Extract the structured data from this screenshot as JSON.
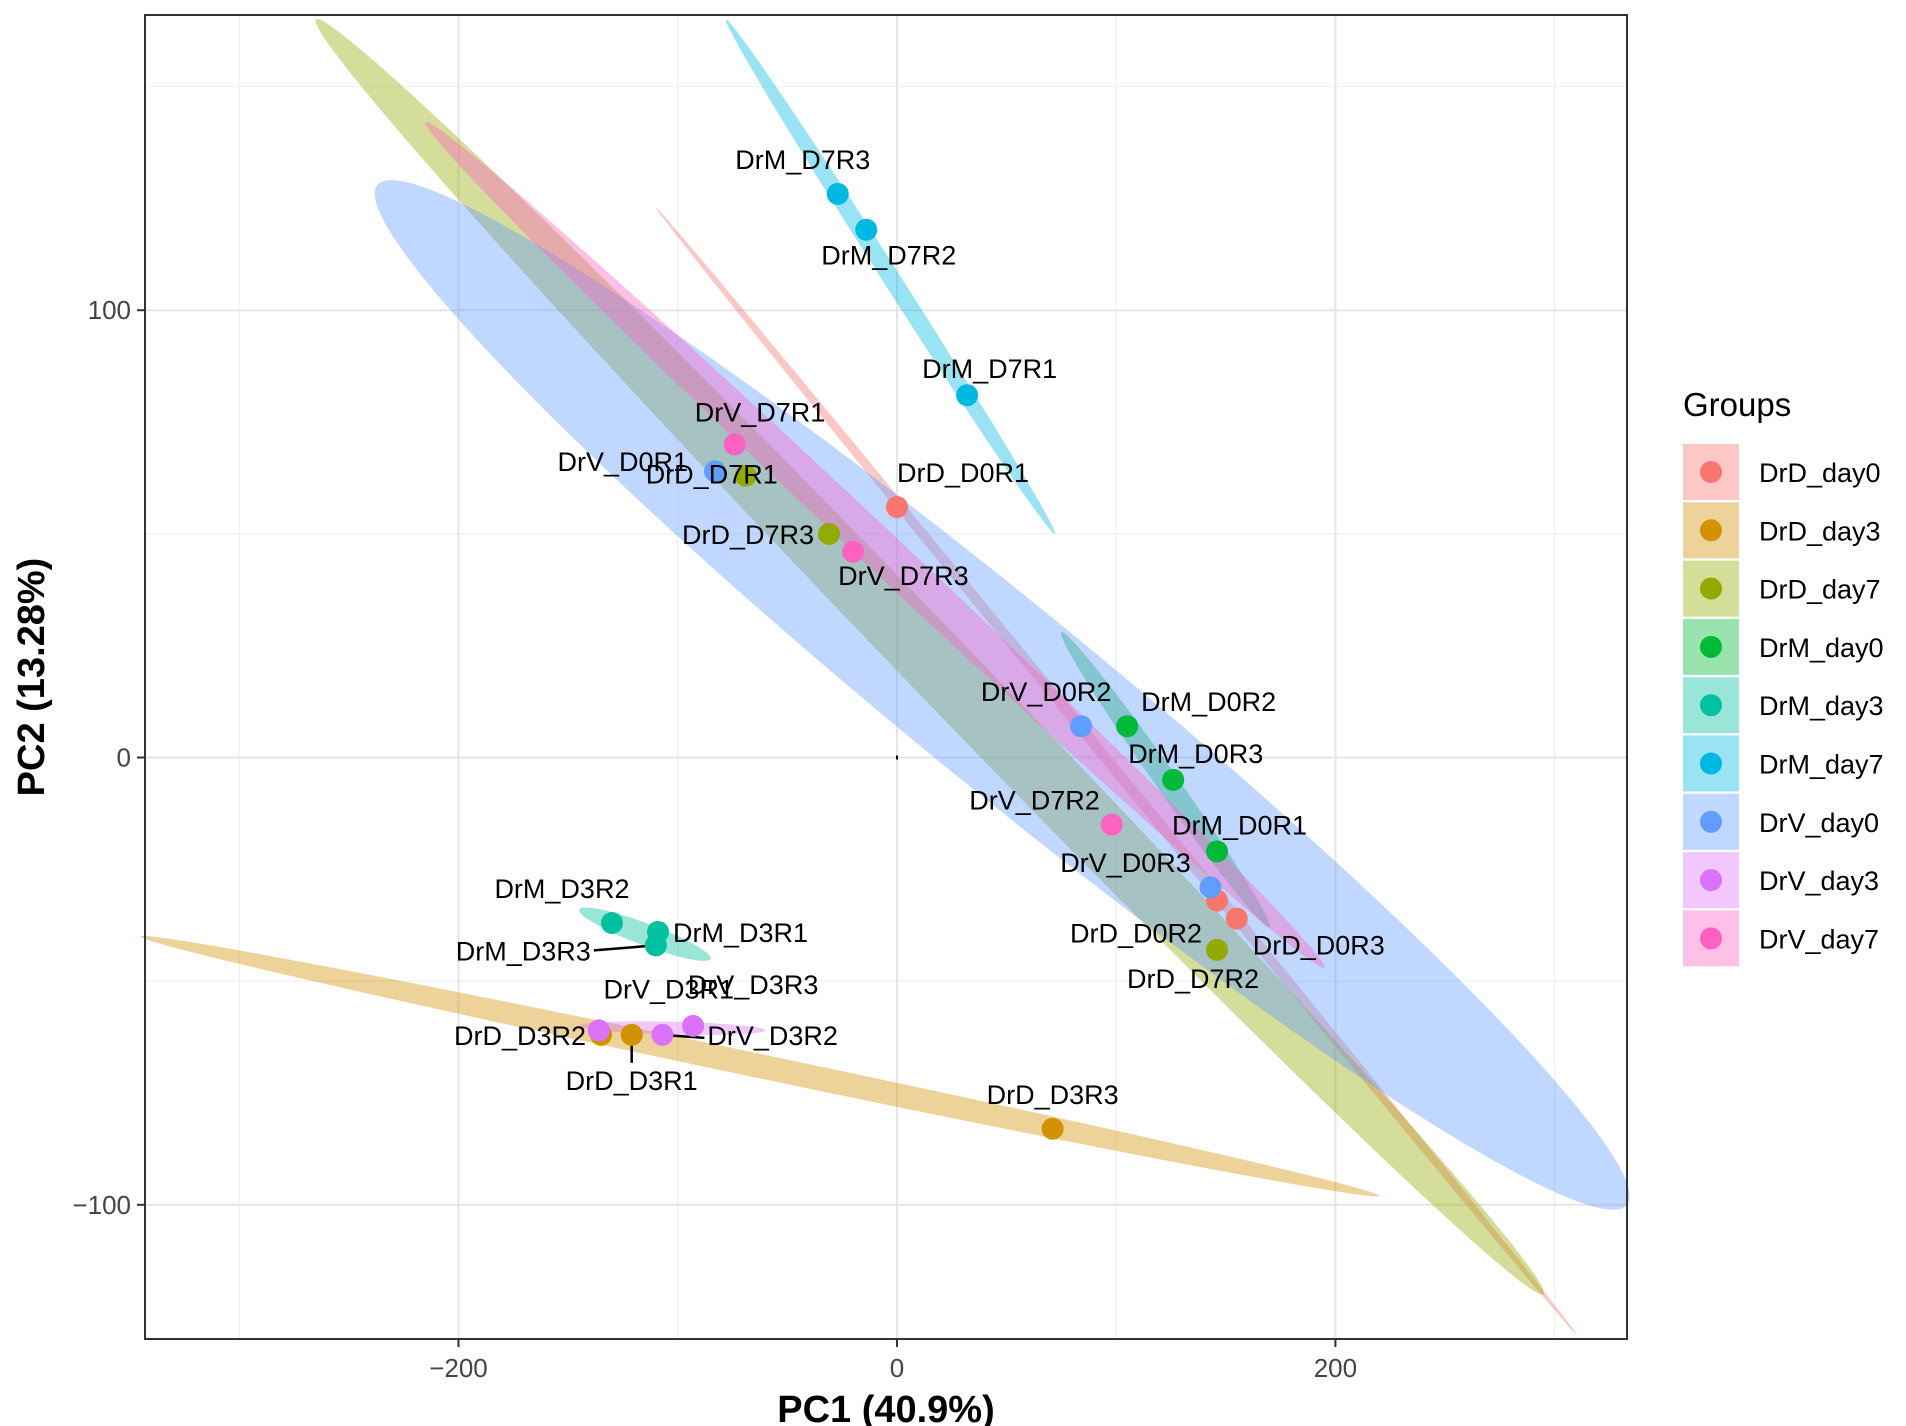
{
  "chart_data": {
    "type": "scatter",
    "xlabel": "PC1 (40.9%)",
    "ylabel": "PC2 (13.28%)",
    "xlim": [
      -343,
      333
    ],
    "ylim": [
      -130,
      166
    ],
    "x_ticks": [
      -200,
      0,
      200
    ],
    "y_ticks": [
      100,
      0,
      -100
    ],
    "x_tick_labels": [
      "−200",
      "0",
      "200"
    ],
    "y_tick_labels": [
      "100",
      "0",
      "−100"
    ],
    "grid": true,
    "legend_title": "Groups",
    "legend_position": "right",
    "groups": [
      {
        "name": "DrD_day0",
        "color": "#F8766D"
      },
      {
        "name": "DrD_day3",
        "color": "#D39200"
      },
      {
        "name": "DrD_day7",
        "color": "#93AA00"
      },
      {
        "name": "DrM_day0",
        "color": "#00BA38"
      },
      {
        "name": "DrM_day3",
        "color": "#00C19F"
      },
      {
        "name": "DrM_day7",
        "color": "#00B9E3"
      },
      {
        "name": "DrV_day0",
        "color": "#619CFF"
      },
      {
        "name": "DrV_day3",
        "color": "#DB72FB"
      },
      {
        "name": "DrV_day7",
        "color": "#FF61C3"
      }
    ],
    "points": [
      {
        "label": "DrD_D0R1",
        "group": "DrD_day0",
        "x": 0,
        "y": 56
      },
      {
        "label": "DrD_D0R2",
        "group": "DrD_day0",
        "x": 146,
        "y": -32
      },
      {
        "label": "DrD_D0R3",
        "group": "DrD_day0",
        "x": 155,
        "y": -36
      },
      {
        "label": "DrD_D3R1",
        "group": "DrD_day3",
        "x": -121,
        "y": -62
      },
      {
        "label": "DrD_D3R2",
        "group": "DrD_day3",
        "x": -135,
        "y": -62
      },
      {
        "label": "DrD_D3R3",
        "group": "DrD_day3",
        "x": 71,
        "y": -83
      },
      {
        "label": "DrD_D7R1",
        "group": "DrD_day7",
        "x": -69,
        "y": 63
      },
      {
        "label": "DrD_D7R2",
        "group": "DrD_day7",
        "x": 146,
        "y": -43
      },
      {
        "label": "DrD_D7R3",
        "group": "DrD_day7",
        "x": -31,
        "y": 50
      },
      {
        "label": "DrM_D0R1",
        "group": "DrM_day0",
        "x": 146,
        "y": -21
      },
      {
        "label": "DrM_D0R2",
        "group": "DrM_day0",
        "x": 105,
        "y": 7
      },
      {
        "label": "DrM_D0R3",
        "group": "DrM_day0",
        "x": 126,
        "y": -5
      },
      {
        "label": "DrM_D3R1",
        "group": "DrM_day3",
        "x": -109,
        "y": -39
      },
      {
        "label": "DrM_D3R2",
        "group": "DrM_day3",
        "x": -130,
        "y": -37
      },
      {
        "label": "DrM_D3R3",
        "group": "DrM_day3",
        "x": -110,
        "y": -42
      },
      {
        "label": "DrM_D7R1",
        "group": "DrM_day7",
        "x": 32,
        "y": 81
      },
      {
        "label": "DrM_D7R2",
        "group": "DrM_day7",
        "x": -14,
        "y": 118
      },
      {
        "label": "DrM_D7R3",
        "group": "DrM_day7",
        "x": -27,
        "y": 126
      },
      {
        "label": "DrV_D0R1",
        "group": "DrV_day0",
        "x": -83,
        "y": 64
      },
      {
        "label": "DrV_D0R2",
        "group": "DrV_day0",
        "x": 84,
        "y": 7
      },
      {
        "label": "DrV_D0R3",
        "group": "DrV_day0",
        "x": 143,
        "y": -29
      },
      {
        "label": "DrV_D3R1",
        "group": "DrV_day3",
        "x": -136,
        "y": -61
      },
      {
        "label": "DrV_D3R2",
        "group": "DrV_day3",
        "x": -107,
        "y": -62
      },
      {
        "label": "DrV_D3R3",
        "group": "DrV_day3",
        "x": -93,
        "y": -60
      },
      {
        "label": "DrV_D7R1",
        "group": "DrV_day7",
        "x": -74,
        "y": 70
      },
      {
        "label": "DrV_D7R2",
        "group": "DrV_day7",
        "x": 98,
        "y": -15
      },
      {
        "label": "DrV_D7R3",
        "group": "DrV_day7",
        "x": -20,
        "y": 46
      }
    ],
    "ellipses": [
      {
        "group": "DrD_day0",
        "x1": -110,
        "y1": 123,
        "x2": 310,
        "y2": -129,
        "width": 1.5
      },
      {
        "group": "DrD_day3",
        "x1": -345,
        "y1": -40,
        "x2": 220,
        "y2": -98,
        "width": 4.5
      },
      {
        "group": "DrD_day7",
        "x1": -265,
        "y1": 165,
        "x2": 295,
        "y2": -120,
        "width": 14
      },
      {
        "group": "DrM_day0",
        "x1": 75,
        "y1": 28,
        "x2": 170,
        "y2": -38,
        "width": 4
      },
      {
        "group": "DrM_day3",
        "x1": -145,
        "y1": -34,
        "x2": -85,
        "y2": -45,
        "width": 4
      },
      {
        "group": "DrM_day7",
        "x1": -78,
        "y1": 165,
        "x2": 72,
        "y2": 50,
        "width": 3
      },
      {
        "group": "DrV_day0",
        "x1": -237,
        "y1": 128,
        "x2": 333,
        "y2": -100,
        "width": 40
      },
      {
        "group": "DrV_day3",
        "x1": -145,
        "y1": -60,
        "x2": -60,
        "y2": -61,
        "width": 2
      },
      {
        "group": "DrV_day7",
        "x1": -215,
        "y1": 142,
        "x2": 195,
        "y2": -47,
        "width": 8
      }
    ],
    "connectors": [
      "DrM_D3R3",
      "DrD_D3R1",
      "DrV_D3R2"
    ]
  }
}
